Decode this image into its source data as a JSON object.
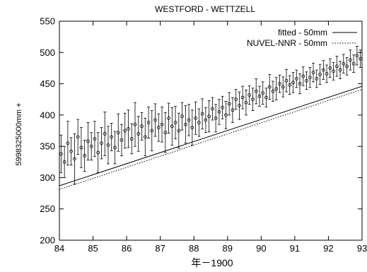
{
  "chart_data": {
    "type": "scatter",
    "title": "WESTFORD - WETTZELL",
    "xlabel": "年－1900",
    "ylabel": "5998325000mm +",
    "xlim": [
      84,
      93
    ],
    "ylim": [
      200,
      550
    ],
    "xticks": [
      "84",
      "85",
      "86",
      "87",
      "88",
      "89",
      "90",
      "91",
      "92",
      "93"
    ],
    "yticks": [
      "200",
      "250",
      "300",
      "350",
      "400",
      "450",
      "500",
      "550"
    ],
    "grid": false,
    "legend_position": "top-right",
    "series": [
      {
        "name": "fitted - 50mm",
        "type": "line",
        "style": "solid",
        "x": [
          84.0,
          93.0
        ],
        "y": [
          287,
          446
        ]
      },
      {
        "name": "NUVEL-NNR - 50mm",
        "type": "line",
        "style": "dotted",
        "x": [
          84.0,
          93.0
        ],
        "y": [
          281,
          441
        ]
      },
      {
        "name": "",
        "type": "scatter_errorbars",
        "marker": "open-circle",
        "x": [
          84.05,
          84.15,
          84.25,
          84.35,
          84.45,
          84.55,
          84.65,
          84.75,
          84.85,
          84.95,
          85.05,
          85.15,
          85.25,
          85.35,
          85.45,
          85.55,
          85.65,
          85.75,
          85.85,
          85.95,
          86.05,
          86.15,
          86.25,
          86.35,
          86.45,
          86.55,
          86.65,
          86.75,
          86.85,
          86.95,
          87.05,
          87.15,
          87.25,
          87.35,
          87.45,
          87.55,
          87.65,
          87.75,
          87.85,
          87.95,
          88.05,
          88.15,
          88.25,
          88.35,
          88.45,
          88.55,
          88.65,
          88.75,
          88.85,
          88.95,
          89.05,
          89.15,
          89.25,
          89.35,
          89.45,
          89.55,
          89.65,
          89.75,
          89.85,
          89.95,
          90.05,
          90.15,
          90.25,
          90.35,
          90.45,
          90.55,
          90.65,
          90.75,
          90.85,
          90.95,
          91.05,
          91.15,
          91.25,
          91.35,
          91.45,
          91.55,
          91.65,
          91.75,
          91.85,
          91.95,
          92.05,
          92.15,
          92.25,
          92.35,
          92.45,
          92.55,
          92.65,
          92.75,
          92.85,
          92.95
        ],
        "y": [
          338,
          325,
          355,
          342,
          330,
          365,
          348,
          335,
          358,
          350,
          362,
          340,
          355,
          370,
          352,
          365,
          348,
          372,
          360,
          375,
          378,
          362,
          385,
          370,
          382,
          365,
          388,
          375,
          392,
          380,
          385,
          372,
          395,
          382,
          388,
          375,
          398,
          385,
          392,
          380,
          395,
          388,
          402,
          392,
          398,
          410,
          395,
          405,
          412,
          400,
          418,
          408,
          425,
          415,
          428,
          420,
          432,
          425,
          438,
          430,
          435,
          428,
          445,
          438,
          442,
          450,
          445,
          455,
          448,
          452,
          458,
          450,
          462,
          455,
          460,
          468,
          458,
          465,
          472,
          466,
          475,
          470,
          478,
          472,
          482,
          478,
          488,
          482,
          495,
          490
        ],
        "errors": [
          30,
          25,
          35,
          22,
          40,
          28,
          32,
          25,
          30,
          22,
          28,
          32,
          25,
          35,
          30,
          22,
          26,
          30,
          25,
          28,
          30,
          24,
          35,
          28,
          22,
          30,
          25,
          32,
          26,
          22,
          28,
          32,
          24,
          30,
          26,
          28,
          22,
          30,
          25,
          28,
          26,
          22,
          24,
          20,
          25,
          18,
          22,
          20,
          18,
          22,
          18,
          20,
          16,
          22,
          18,
          20,
          15,
          18,
          20,
          16,
          18,
          15,
          20,
          16,
          18,
          14,
          16,
          18,
          15,
          16,
          14,
          16,
          15,
          14,
          16,
          15,
          14,
          16,
          15,
          14,
          15,
          14,
          16,
          14,
          15,
          14,
          16,
          14,
          15,
          14
        ]
      }
    ]
  }
}
